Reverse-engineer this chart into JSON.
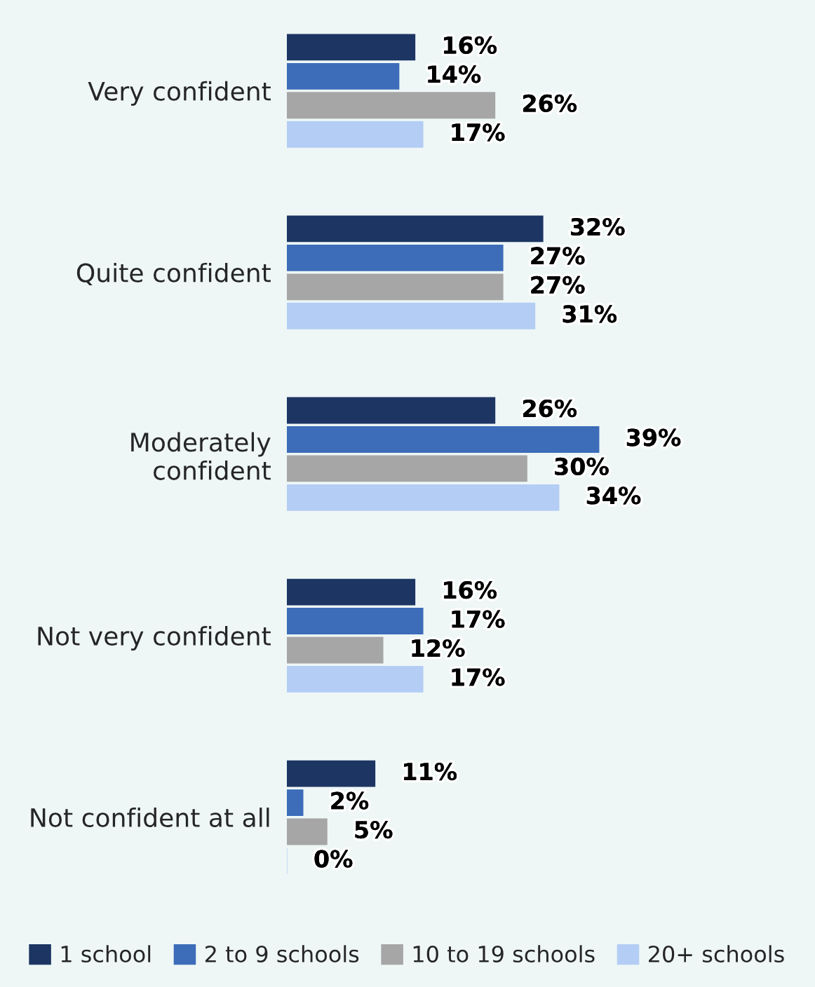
{
  "chart_data": {
    "type": "bar",
    "orientation": "horizontal",
    "categories": [
      "Very confident",
      "Quite confident",
      "Moderately\nconfident",
      "Not very confident",
      "Not confident at all"
    ],
    "series": [
      {
        "name": "1 school",
        "color": "#1c3563",
        "values": [
          16,
          32,
          26,
          16,
          11
        ],
        "value_labels": [
          "16%",
          "32%",
          "26%",
          "16%",
          "11%"
        ]
      },
      {
        "name": "2 to 9 schools",
        "color": "#3d6cb9",
        "values": [
          14,
          27,
          39,
          17,
          2
        ],
        "value_labels": [
          "14%",
          "27%",
          "39%",
          "17%",
          "2%"
        ]
      },
      {
        "name": "10 to 19 schools",
        "color": "#a6a6a6",
        "values": [
          26,
          27,
          30,
          12,
          5
        ],
        "value_labels": [
          "26%",
          "27%",
          "30%",
          "12%",
          "5%"
        ]
      },
      {
        "name": "20+ schools",
        "color": "#b4cdf5",
        "values": [
          17,
          31,
          34,
          17,
          0
        ],
        "value_labels": [
          "17%",
          "31%",
          "34%",
          "17%",
          "0%"
        ]
      }
    ],
    "legend": "bottom",
    "grid": false
  }
}
